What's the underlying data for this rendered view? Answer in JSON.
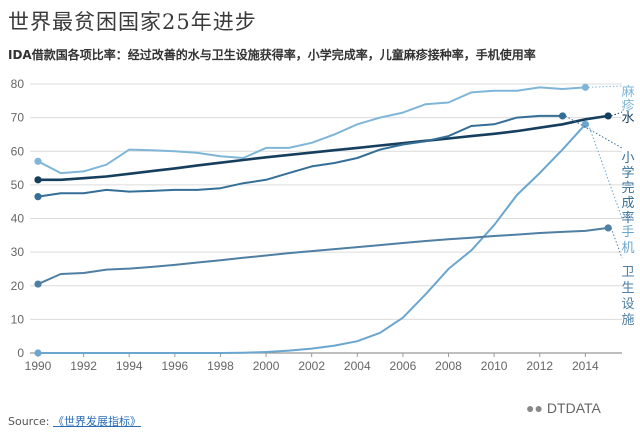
{
  "header": {
    "title": "世界最贫困国家25年进步",
    "subtitle": "IDA借款国各项比率：经过改善的水与卫生设施获得率，小学完成率，儿童麻疹接种率，手机使用率"
  },
  "footer": {
    "source_label": "Source: ",
    "source_link": "《世界发展指标》",
    "watermark": "DTDATA",
    "watermark_icon": "wechat-icon"
  },
  "colors": {
    "measles": "#7fb6d8",
    "water": "#163f5e",
    "primary": "#356f98",
    "sanitation": "#4f7fa3",
    "mobile": "#6aa6cf",
    "grid": "#dcdcdc",
    "axis": "#999999"
  },
  "chart_data": {
    "type": "line",
    "title": "世界最贫困国家25年进步",
    "subtitle": "IDA借款国各项比率：经过改善的水与卫生设施获得率，小学完成率，儿童麻疹接种率，手机使用率",
    "xlabel": "",
    "ylabel": "",
    "xlim": [
      1990,
      2015
    ],
    "ylim": [
      0,
      80
    ],
    "grid": true,
    "x_ticks": [
      "1990",
      "1992",
      "1994",
      "1996",
      "1998",
      "2000",
      "2002",
      "2004",
      "2006",
      "2008",
      "2010",
      "2012",
      "2014"
    ],
    "y_ticks": [
      "0",
      "10",
      "20",
      "30",
      "40",
      "50",
      "60",
      "70",
      "80"
    ],
    "series": [
      {
        "key": "measles",
        "name": "麻疹",
        "label_chars": [
          "麻",
          "疹"
        ],
        "x": [
          1990,
          1991,
          1992,
          1993,
          1994,
          1995,
          1996,
          1997,
          1998,
          1999,
          2000,
          2001,
          2002,
          2003,
          2004,
          2005,
          2006,
          2007,
          2008,
          2009,
          2010,
          2011,
          2012,
          2013,
          2014
        ],
        "values": [
          57,
          53.5,
          54,
          56,
          60.5,
          60.3,
          60,
          59.5,
          58.5,
          58,
          61,
          61,
          62.5,
          65,
          68,
          70,
          71.5,
          74,
          74.5,
          77.5,
          78,
          78,
          79,
          78.5,
          79
        ]
      },
      {
        "key": "water",
        "name": "水",
        "label_chars": [
          "水"
        ],
        "x": [
          1990,
          1991,
          1992,
          1993,
          1994,
          1995,
          1996,
          1997,
          1998,
          1999,
          2000,
          2001,
          2002,
          2003,
          2004,
          2005,
          2006,
          2007,
          2008,
          2009,
          2010,
          2011,
          2012,
          2013,
          2014,
          2015
        ],
        "values": [
          51.5,
          51.5,
          52,
          52.5,
          53.3,
          54.1,
          54.9,
          55.8,
          56.6,
          57.4,
          58.2,
          58.9,
          59.6,
          60.3,
          61,
          61.7,
          62.4,
          63.1,
          63.8,
          64.5,
          65.2,
          66,
          67,
          68,
          69.5,
          70.5
        ]
      },
      {
        "key": "primary",
        "name": "小学完成率",
        "label_chars": [
          "小",
          "学",
          "完",
          "成",
          "率"
        ],
        "x": [
          1990,
          1991,
          1992,
          1993,
          1994,
          1995,
          1996,
          1997,
          1998,
          1999,
          2000,
          2001,
          2002,
          2003,
          2004,
          2005,
          2006,
          2007,
          2008,
          2009,
          2010,
          2011,
          2012,
          2013
        ],
        "values": [
          46.5,
          47.5,
          47.5,
          48.5,
          48,
          48.2,
          48.5,
          48.5,
          49,
          50.5,
          51.5,
          53.5,
          55.5,
          56.5,
          58,
          60.5,
          62,
          63,
          64.5,
          67.5,
          68,
          70,
          70.5,
          70.5
        ]
      },
      {
        "key": "mobile",
        "name": "手机",
        "label_chars": [
          "手",
          "机"
        ],
        "x": [
          1990,
          1991,
          1992,
          1993,
          1994,
          1995,
          1996,
          1997,
          1998,
          1999,
          2000,
          2001,
          2002,
          2003,
          2004,
          2005,
          2006,
          2007,
          2008,
          2009,
          2010,
          2011,
          2012,
          2013,
          2014
        ],
        "values": [
          0,
          0,
          0,
          0,
          0,
          0,
          0,
          0,
          0,
          0.1,
          0.3,
          0.7,
          1.3,
          2.2,
          3.5,
          6,
          10.5,
          17.5,
          25,
          30.5,
          38,
          47,
          53.5,
          60.5,
          68
        ]
      },
      {
        "key": "sanitation",
        "name": "卫生设施",
        "label_chars": [
          "卫",
          "生",
          "设",
          "施"
        ],
        "x": [
          1990,
          1991,
          1992,
          1993,
          1994,
          1995,
          1996,
          1997,
          1998,
          1999,
          2000,
          2001,
          2002,
          2003,
          2004,
          2005,
          2006,
          2007,
          2008,
          2009,
          2010,
          2011,
          2012,
          2013,
          2014,
          2015
        ],
        "values": [
          20.5,
          23.5,
          23.8,
          24.8,
          25.1,
          25.6,
          26.2,
          26.9,
          27.6,
          28.3,
          29,
          29.7,
          30.3,
          30.9,
          31.5,
          32.1,
          32.7,
          33.3,
          33.8,
          34.3,
          34.8,
          35.2,
          35.7,
          36,
          36.3,
          37.2
        ]
      }
    ]
  }
}
